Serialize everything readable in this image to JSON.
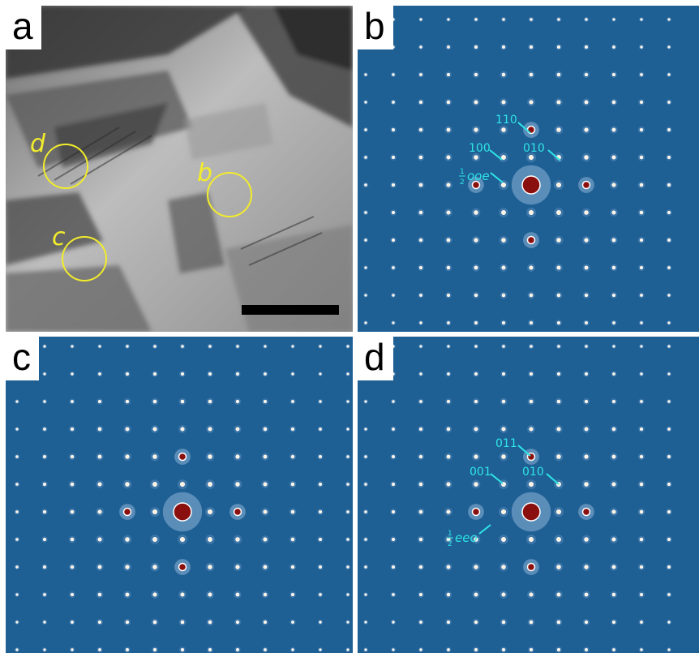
{
  "panels": {
    "a": {
      "label": "a",
      "circle_labels": [
        "d",
        "b",
        "c"
      ]
    },
    "b": {
      "label": "b",
      "indices": [
        "110",
        "100",
        "010"
      ],
      "superlattice": {
        "fraction_num": "1",
        "fraction_den": "2",
        "text": "ooe"
      }
    },
    "c": {
      "label": "c"
    },
    "d": {
      "label": "d",
      "indices": [
        "011",
        "001",
        "010"
      ],
      "superlattice": {
        "fraction_num": "1",
        "fraction_den": "2",
        "text": "eeo"
      }
    }
  },
  "colors": {
    "diffraction_bg": "#1e5f94",
    "annotation": "#2ee6e6",
    "circle": "#f2ec2c",
    "spot_core": "#8a0f0f"
  }
}
